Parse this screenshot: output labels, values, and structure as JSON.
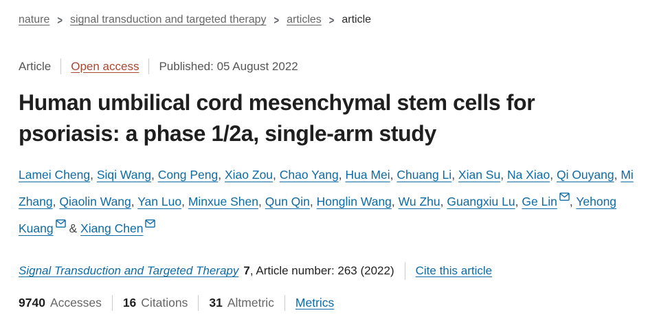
{
  "breadcrumb": {
    "separator": ">",
    "items": [
      {
        "label": "nature"
      },
      {
        "label": "signal transduction and targeted therapy"
      },
      {
        "label": "articles"
      },
      {
        "label": "article"
      }
    ]
  },
  "meta_bar": {
    "type": "Article",
    "access": "Open access",
    "published": "Published: 05 August 2022"
  },
  "title": "Human umbilical cord mesenchymal stem cells for psoriasis: a phase 1/2a, single-arm study",
  "authors": {
    "separator": ", ",
    "last_separator": " & ",
    "list": [
      {
        "name": "Lamei Cheng",
        "email": false
      },
      {
        "name": "Siqi Wang",
        "email": false
      },
      {
        "name": "Cong Peng",
        "email": false
      },
      {
        "name": "Xiao Zou",
        "email": false
      },
      {
        "name": "Chao Yang",
        "email": false
      },
      {
        "name": "Hua Mei",
        "email": false
      },
      {
        "name": "Chuang Li",
        "email": false
      },
      {
        "name": "Xian Su",
        "email": false
      },
      {
        "name": "Na Xiao",
        "email": false
      },
      {
        "name": "Qi Ouyang",
        "email": false
      },
      {
        "name": "Mi Zhang",
        "email": false
      },
      {
        "name": "Qiaolin Wang",
        "email": false
      },
      {
        "name": "Yan Luo",
        "email": false
      },
      {
        "name": "Minxue Shen",
        "email": false
      },
      {
        "name": "Qun Qin",
        "email": false
      },
      {
        "name": "Honglin Wang",
        "email": false
      },
      {
        "name": "Wu Zhu",
        "email": false
      },
      {
        "name": "Guangxiu Lu",
        "email": false
      },
      {
        "name": "Ge Lin",
        "email": true
      },
      {
        "name": "Yehong Kuang",
        "email": true
      },
      {
        "name": "Xiang Chen",
        "email": true
      }
    ]
  },
  "citation": {
    "journal": "Signal Transduction and Targeted Therapy",
    "volume": "7",
    "article_info": ", Article number: 263 (2022)",
    "cite_link": "Cite this article"
  },
  "metrics": {
    "items": [
      {
        "value": "9740",
        "label": "Accesses"
      },
      {
        "value": "16",
        "label": "Citations"
      },
      {
        "value": "31",
        "label": "Altmetric"
      }
    ],
    "link": "Metrics"
  },
  "colors": {
    "link_blue": "#0e6ba3",
    "open_access": "#a8462f",
    "text_dark": "#1f1f1f",
    "text_gray": "#666666",
    "divider_gray": "#cccccc"
  }
}
